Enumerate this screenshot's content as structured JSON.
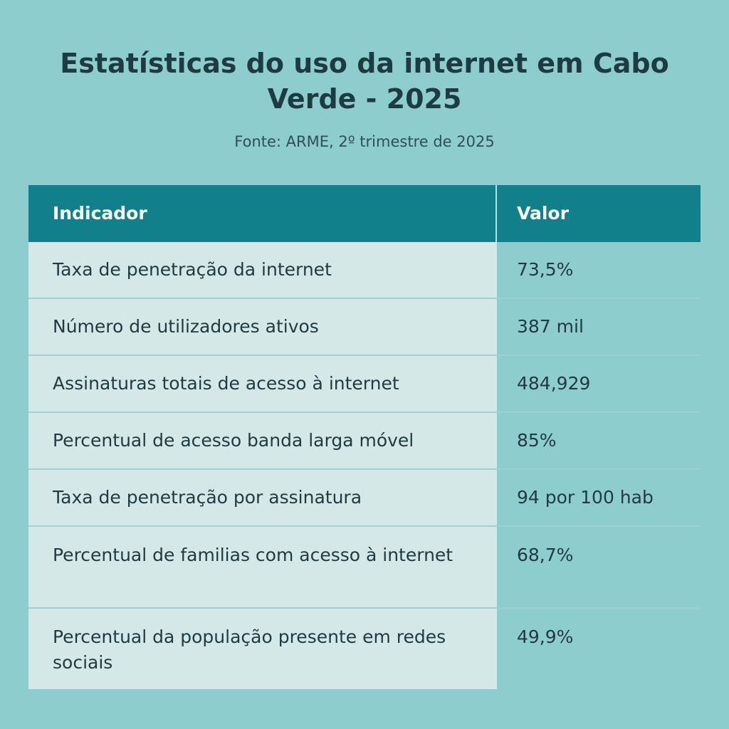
{
  "title": "Estatísticas do uso da internet em Cabo Verde - 2025",
  "subtitle": "Fonte: ARME, 2º trimestre de 2025",
  "chart_data": {
    "type": "table",
    "title": "Estatísticas do uso da internet em Cabo Verde - 2025",
    "subtitle": "Fonte: ARME, 2º trimestre de 2025",
    "columns": [
      "Indicador",
      "Valor"
    ],
    "rows": [
      {
        "indicador": "Taxa de penetração da internet",
        "valor": "73,5%"
      },
      {
        "indicador": "Número de utilizadores ativos",
        "valor": "387 mil"
      },
      {
        "indicador": "Assinaturas totais de acesso à internet",
        "valor": "484,929"
      },
      {
        "indicador": "Percentual de acesso banda larga móvel",
        "valor": "85%"
      },
      {
        "indicador": "Taxa de penetração por assinatura",
        "valor": "94 por 100 hab"
      },
      {
        "indicador": "Percentual de familias com acesso à internet",
        "valor": "68,7%"
      },
      {
        "indicador": "Percentual da população presente em redes sociais",
        "valor": "49,9%"
      }
    ]
  },
  "colors": {
    "background": "#8ecdcd",
    "header": "#11808a",
    "indicator_cell": "#d4e9e7",
    "text": "#1d3a40"
  }
}
